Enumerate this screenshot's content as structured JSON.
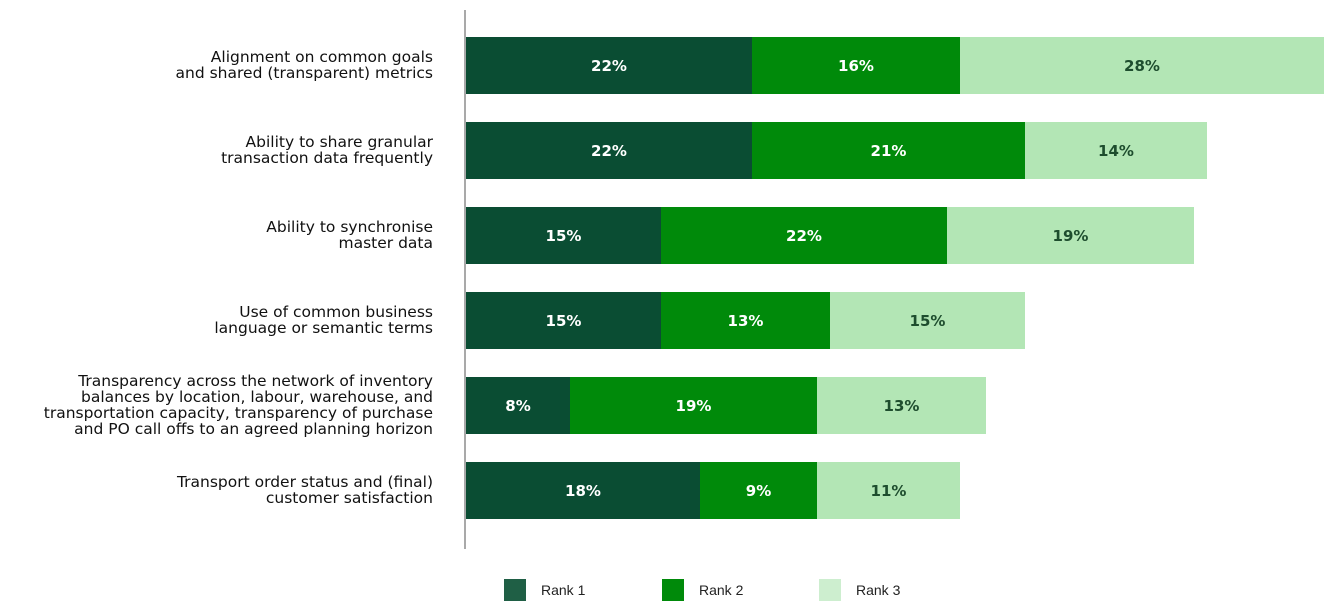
{
  "chart_data": {
    "type": "bar",
    "orientation": "horizontal",
    "stacked": true,
    "categories": [
      "Alignment on common goals\nand shared (transparent) metrics",
      "Ability to share granular\ntransaction data frequently",
      "Ability to synchronise\nmaster data",
      "Use of common business\nlanguage or semantic terms",
      "Transparency across the network of inventory\nbalances by location, labour, warehouse, and\ntransportation capacity, transparency of purchase\nand PO call offs to an agreed planning horizon",
      "Transport order status and (final)\ncustomer satisfaction"
    ],
    "series": [
      {
        "name": "Rank 1",
        "color": "#0a4d33",
        "label_color": "#ffffff",
        "values": [
          22,
          22,
          15,
          15,
          8,
          18
        ]
      },
      {
        "name": "Rank 2",
        "color": "#008a0a",
        "label_color": "#ffffff",
        "values": [
          16,
          21,
          22,
          13,
          19,
          9
        ]
      },
      {
        "name": "Rank 3",
        "color": "#b3e6b5",
        "label_color": "#1e4d2e",
        "values": [
          28,
          14,
          19,
          15,
          13,
          11
        ]
      }
    ],
    "value_suffix": "%",
    "xlim": [
      0,
      66
    ],
    "grid": false,
    "legend_position": "bottom"
  }
}
